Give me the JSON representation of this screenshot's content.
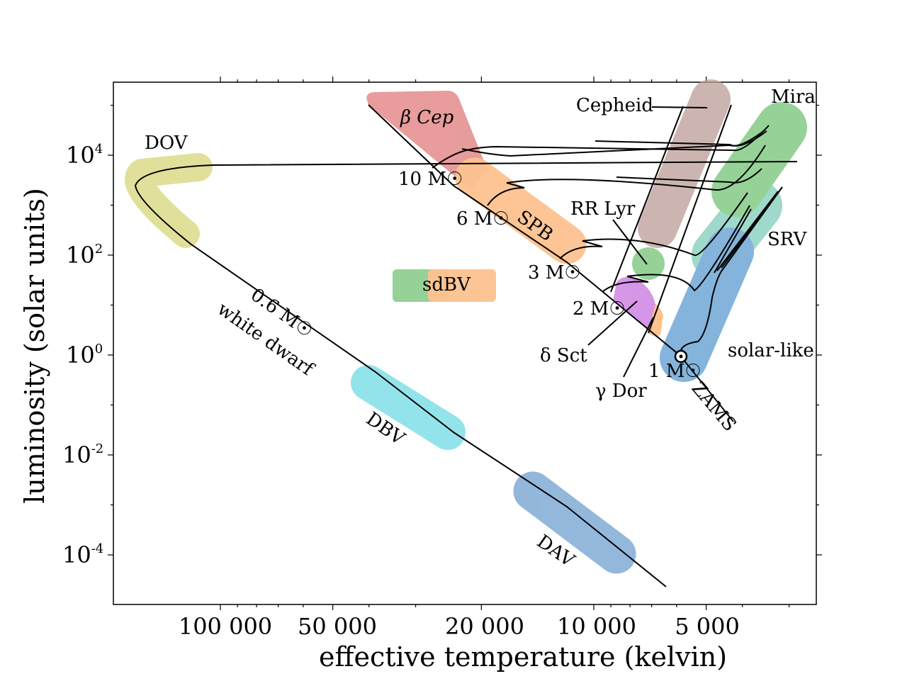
{
  "chart_data": {
    "type": "line",
    "xlabel": "effective temperature (kelvin)",
    "ylabel": "luminosity (solar units)",
    "x_scale": "log",
    "x_reversed": true,
    "y_scale": "log",
    "x_ticks": [
      "100 000",
      "50 000",
      "20 000",
      "10 000",
      "5 000"
    ],
    "y_ticks": [
      {
        "base": "10",
        "exp": "4"
      },
      {
        "base": "10",
        "exp": "2"
      },
      {
        "base": "10",
        "exp": "0"
      },
      {
        "base": "10",
        "exp": "-2"
      },
      {
        "base": "10",
        "exp": "-4"
      }
    ],
    "grid": false,
    "regions": [
      {
        "name": "DOV",
        "color": "#d6d67a"
      },
      {
        "name": "β Cep",
        "color": "#e07b7b"
      },
      {
        "name": "SPB",
        "color": "#fdae6b"
      },
      {
        "name": "sdBV",
        "colors": [
          "#74c476",
          "#fdae6b"
        ]
      },
      {
        "name": "Cepheid",
        "color": "#bc9d96"
      },
      {
        "name": "Mira",
        "color": "#74c476"
      },
      {
        "name": "SRV",
        "color": "#7fcdbb"
      },
      {
        "name": "RR Lyr",
        "color": "#74c476"
      },
      {
        "name": "δ Sct",
        "color": "#c874e0"
      },
      {
        "name": "γ Dor",
        "color": "#fdae6b"
      },
      {
        "name": "solar-like",
        "color": "#6fa8d6"
      },
      {
        "name": "DBV",
        "color": "#6fdbe3"
      },
      {
        "name": "DAV",
        "color": "#6fa0d0"
      }
    ],
    "annotations": {
      "zams": "ZAMS",
      "white_dwarf": "white dwarf",
      "wd_mass": "0.6 M☉",
      "masses": [
        "10 M☉",
        "6 M☉",
        "3 M☉",
        "2 M☉",
        "1 M☉"
      ]
    }
  }
}
